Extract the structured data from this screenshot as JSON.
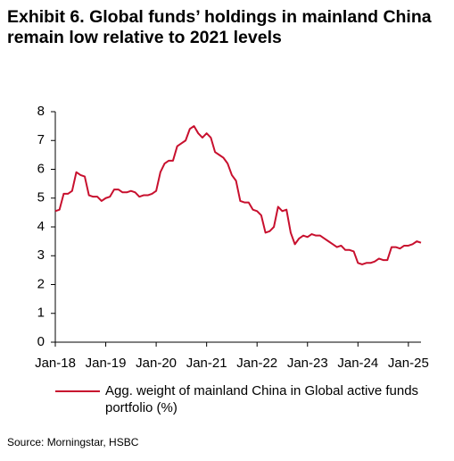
{
  "chart_data": {
    "type": "line",
    "title": "Exhibit 6. Global funds’ holdings in mainland China remain low relative to 2021 levels",
    "source": "Source: Morningstar, HSBC",
    "x": [
      "2018-01",
      "2018-02",
      "2018-03",
      "2018-04",
      "2018-05",
      "2018-06",
      "2018-07",
      "2018-08",
      "2018-09",
      "2018-10",
      "2018-11",
      "2018-12",
      "2019-01",
      "2019-02",
      "2019-03",
      "2019-04",
      "2019-05",
      "2019-06",
      "2019-07",
      "2019-08",
      "2019-09",
      "2019-10",
      "2019-11",
      "2019-12",
      "2020-01",
      "2020-02",
      "2020-03",
      "2020-04",
      "2020-05",
      "2020-06",
      "2020-07",
      "2020-08",
      "2020-09",
      "2020-10",
      "2020-11",
      "2020-12",
      "2021-01",
      "2021-02",
      "2021-03",
      "2021-04",
      "2021-05",
      "2021-06",
      "2021-07",
      "2021-08",
      "2021-09",
      "2021-10",
      "2021-11",
      "2021-12",
      "2022-01",
      "2022-02",
      "2022-03",
      "2022-04",
      "2022-05",
      "2022-06",
      "2022-07",
      "2022-08",
      "2022-09",
      "2022-10",
      "2022-11",
      "2022-12",
      "2023-01",
      "2023-02",
      "2023-03",
      "2023-04",
      "2023-05",
      "2023-06",
      "2023-07",
      "2023-08",
      "2023-09",
      "2023-10",
      "2023-11",
      "2023-12",
      "2024-01",
      "2024-02",
      "2024-03",
      "2024-04",
      "2024-05",
      "2024-06",
      "2024-07",
      "2024-08",
      "2024-09",
      "2024-10",
      "2024-11",
      "2024-12",
      "2025-01",
      "2025-02",
      "2025-03",
      "2025-04"
    ],
    "series": [
      {
        "name": "Agg. weight of mainland China in Global active funds portfolio (%)",
        "color": "#c8102e",
        "values": [
          4.55,
          4.6,
          5.15,
          5.15,
          5.25,
          5.9,
          5.8,
          5.75,
          5.1,
          5.05,
          5.05,
          4.9,
          5.0,
          5.05,
          5.3,
          5.3,
          5.2,
          5.2,
          5.25,
          5.2,
          5.05,
          5.1,
          5.1,
          5.15,
          5.25,
          5.9,
          6.2,
          6.3,
          6.3,
          6.8,
          6.9,
          7.0,
          7.4,
          7.5,
          7.25,
          7.1,
          7.25,
          7.1,
          6.6,
          6.5,
          6.4,
          6.2,
          5.8,
          5.6,
          4.9,
          4.85,
          4.85,
          4.6,
          4.55,
          4.4,
          3.8,
          3.85,
          4.0,
          4.7,
          4.55,
          4.6,
          3.8,
          3.4,
          3.6,
          3.7,
          3.65,
          3.75,
          3.7,
          3.7,
          3.6,
          3.5,
          3.4,
          3.3,
          3.35,
          3.2,
          3.2,
          3.15,
          2.75,
          2.7,
          2.75,
          2.75,
          2.8,
          2.9,
          2.85,
          2.85,
          3.3,
          3.3,
          3.25,
          3.35,
          3.35,
          3.4,
          3.5,
          3.45
        ]
      }
    ],
    "xlim": [
      "2018-01",
      "2025-04"
    ],
    "xticks": [
      {
        "value": "2018-01",
        "label": "Jan-18"
      },
      {
        "value": "2019-01",
        "label": "Jan-19"
      },
      {
        "value": "2020-01",
        "label": "Jan-20"
      },
      {
        "value": "2021-01",
        "label": "Jan-21"
      },
      {
        "value": "2022-01",
        "label": "Jan-22"
      },
      {
        "value": "2023-01",
        "label": "Jan-23"
      },
      {
        "value": "2024-01",
        "label": "Jan-24"
      },
      {
        "value": "2025-01",
        "label": "Jan-25"
      }
    ],
    "ylim": [
      0,
      8
    ],
    "yticks": [
      0,
      1,
      2,
      3,
      4,
      5,
      6,
      7,
      8
    ],
    "grid": false
  }
}
